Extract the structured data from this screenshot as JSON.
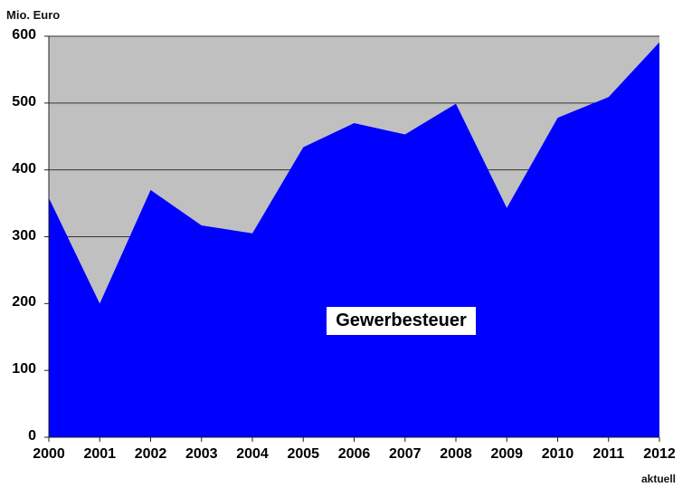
{
  "chart_data": {
    "type": "area",
    "title": "",
    "xlabel": "",
    "ylabel": "Mio. Euro",
    "x": [
      "2000",
      "2001",
      "2002",
      "2003",
      "2004",
      "2005",
      "2006",
      "2007",
      "2008",
      "2009",
      "2010",
      "2011",
      "2012"
    ],
    "x_note": "aktuell",
    "series": [
      {
        "name": "Gewerbesteuer",
        "color": "#0000ff",
        "values": [
          358,
          200,
          370,
          317,
          305,
          434,
          470,
          453,
          499,
          343,
          478,
          509,
          591
        ]
      }
    ],
    "yticks": [
      "0",
      "100",
      "200",
      "300",
      "400",
      "500",
      "600"
    ],
    "ylim": [
      0,
      600
    ],
    "grid": true,
    "background_color": "#c0c0c0",
    "legend_position": "inside-center"
  },
  "labels": {
    "unit": "Mio. Euro",
    "series_label": "Gewerbesteuer",
    "x_note": "aktuell"
  }
}
